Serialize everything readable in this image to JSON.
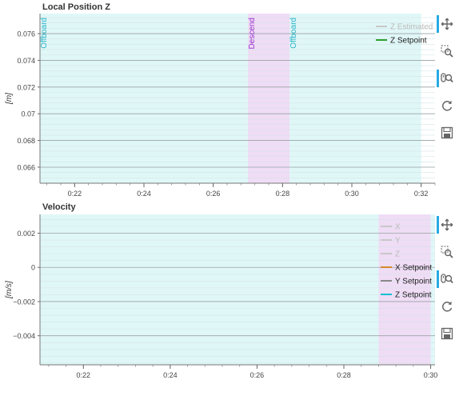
{
  "chart_data": [
    {
      "type": "line",
      "title": "Local Position Z",
      "xlabel": "",
      "ylabel": "[m]",
      "x_range": [
        "0:21",
        "0:32.4"
      ],
      "y_range": [
        0.0648,
        0.0775
      ],
      "x_ticks": [
        "0:22",
        "0:24",
        "0:26",
        "0:28",
        "0:30",
        "0:32"
      ],
      "y_ticks": [
        0.076,
        0.074,
        0.072,
        0.07,
        0.068,
        0.066
      ],
      "grid": true,
      "legend_placement": "top-right",
      "series": [
        {
          "name": "Z Estimated",
          "color": "#c8c8c8",
          "visible": false,
          "x": [],
          "y": []
        },
        {
          "name": "Z Setpoint",
          "color": "#2ca02c",
          "visible": true,
          "x": [],
          "y": []
        }
      ],
      "flight_modes": [
        {
          "label": "Offboard",
          "start": "0:21.0",
          "end": "0:27.0",
          "color": "#e0f7f7",
          "label_color": "#27b3c8"
        },
        {
          "label": "Descend",
          "start": "0:27.0",
          "end": "0:28.2",
          "color": "#efdcf5",
          "label_color": "#9933cc"
        },
        {
          "label": "Offboard",
          "start": "0:28.2",
          "end": "0:32.0",
          "color": "#e0f7f7",
          "label_color": "#27b3c8"
        }
      ]
    },
    {
      "type": "line",
      "title": "Velocity",
      "xlabel": "",
      "ylabel": "[m/s]",
      "x_range": [
        "0:21",
        "0:30.1"
      ],
      "y_range": [
        -0.0057,
        0.0031
      ],
      "x_ticks": [
        "0:22",
        "0:24",
        "0:26",
        "0:28",
        "0:30"
      ],
      "y_ticks": [
        "0.002",
        "0",
        "−0.002",
        "−0.004"
      ],
      "grid": true,
      "legend_placement": "top-right",
      "series": [
        {
          "name": "X",
          "color": "#c8c8c8",
          "visible": false,
          "x": [],
          "y": []
        },
        {
          "name": "Y",
          "color": "#c8c8c8",
          "visible": false,
          "x": [],
          "y": []
        },
        {
          "name": "Z",
          "color": "#c8c8c8",
          "visible": false,
          "x": [],
          "y": []
        },
        {
          "name": "X Setpoint",
          "color": "#d68a2a",
          "visible": true,
          "x": [],
          "y": []
        },
        {
          "name": "Y Setpoint",
          "color": "#888888",
          "visible": true,
          "x": [],
          "y": []
        },
        {
          "name": "Z Setpoint",
          "color": "#17becf",
          "visible": true,
          "x": [],
          "y": []
        }
      ],
      "flight_modes": [
        {
          "label": "",
          "start": "0:21.0",
          "end": "0:28.8",
          "color": "#e0f7f7",
          "label_color": "#27b3c8"
        },
        {
          "label": "",
          "start": "0:28.8",
          "end": "0:30.0",
          "color": "#efdcf5",
          "label_color": "#9933cc"
        },
        {
          "label": "",
          "start": "0:30.0",
          "end": "0:30.1",
          "color": "#e0f7f7",
          "label_color": "#27b3c8"
        }
      ]
    }
  ],
  "toolbar": {
    "tools": [
      {
        "icon": "pan-icon",
        "active": true
      },
      {
        "icon": "box-zoom-icon",
        "active": false
      },
      {
        "icon": "wheel-zoom-icon",
        "active": true
      },
      {
        "icon": "reset-icon",
        "active": false
      },
      {
        "icon": "save-icon",
        "active": false
      }
    ]
  }
}
